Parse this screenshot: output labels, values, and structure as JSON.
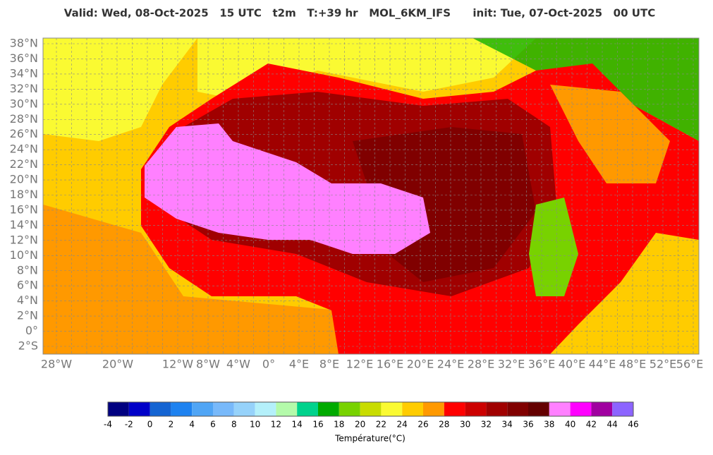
{
  "header": {
    "title": "Valid: Wed, 08-Oct-2025   15 UTC   t2m   T:+39 hr   MOL_6KM_IFS      init: Tue, 07-Oct-2025   00 UTC"
  },
  "map": {
    "lat_labels": [
      "38°N",
      "36°N",
      "34°N",
      "32°N",
      "30°N",
      "28°N",
      "26°N",
      "24°N",
      "22°N",
      "20°N",
      "18°N",
      "16°N",
      "14°N",
      "12°N",
      "10°N",
      "8°N",
      "6°N",
      "4°N",
      "2°N",
      "0°",
      "2°S"
    ],
    "lon_labels": [
      "28°W",
      "20°W",
      "12°W",
      "8°W",
      "4°W",
      "0°",
      "4°E",
      "8°E",
      "12°E",
      "16°E",
      "20°E",
      "24°E",
      "28°E",
      "32°E",
      "36°E",
      "40°E",
      "44°E",
      "48°E",
      "52°E",
      "56°E"
    ]
  },
  "colorbar": {
    "colors": [
      "#000080",
      "#0000c8",
      "#1464d2",
      "#1e82f0",
      "#50a5f5",
      "#78b9fa",
      "#96d2fa",
      "#b4f0fa",
      "#b4faaa",
      "#00d28c",
      "#00aa00",
      "#78d200",
      "#c8dc00",
      "#fafa32",
      "#ffcc00",
      "#ff9900",
      "#ff0000",
      "#cc0000",
      "#a00000",
      "#800000",
      "#640000",
      "#ff80ff",
      "#ff00ff",
      "#a000a0",
      "#8c64ff"
    ],
    "ticks": [
      -4,
      -2,
      0,
      2,
      4,
      6,
      8,
      10,
      12,
      14,
      16,
      18,
      20,
      22,
      24,
      26,
      28,
      30,
      32,
      34,
      36,
      38,
      40,
      42,
      44,
      46
    ],
    "label": "Température(°C)"
  }
}
